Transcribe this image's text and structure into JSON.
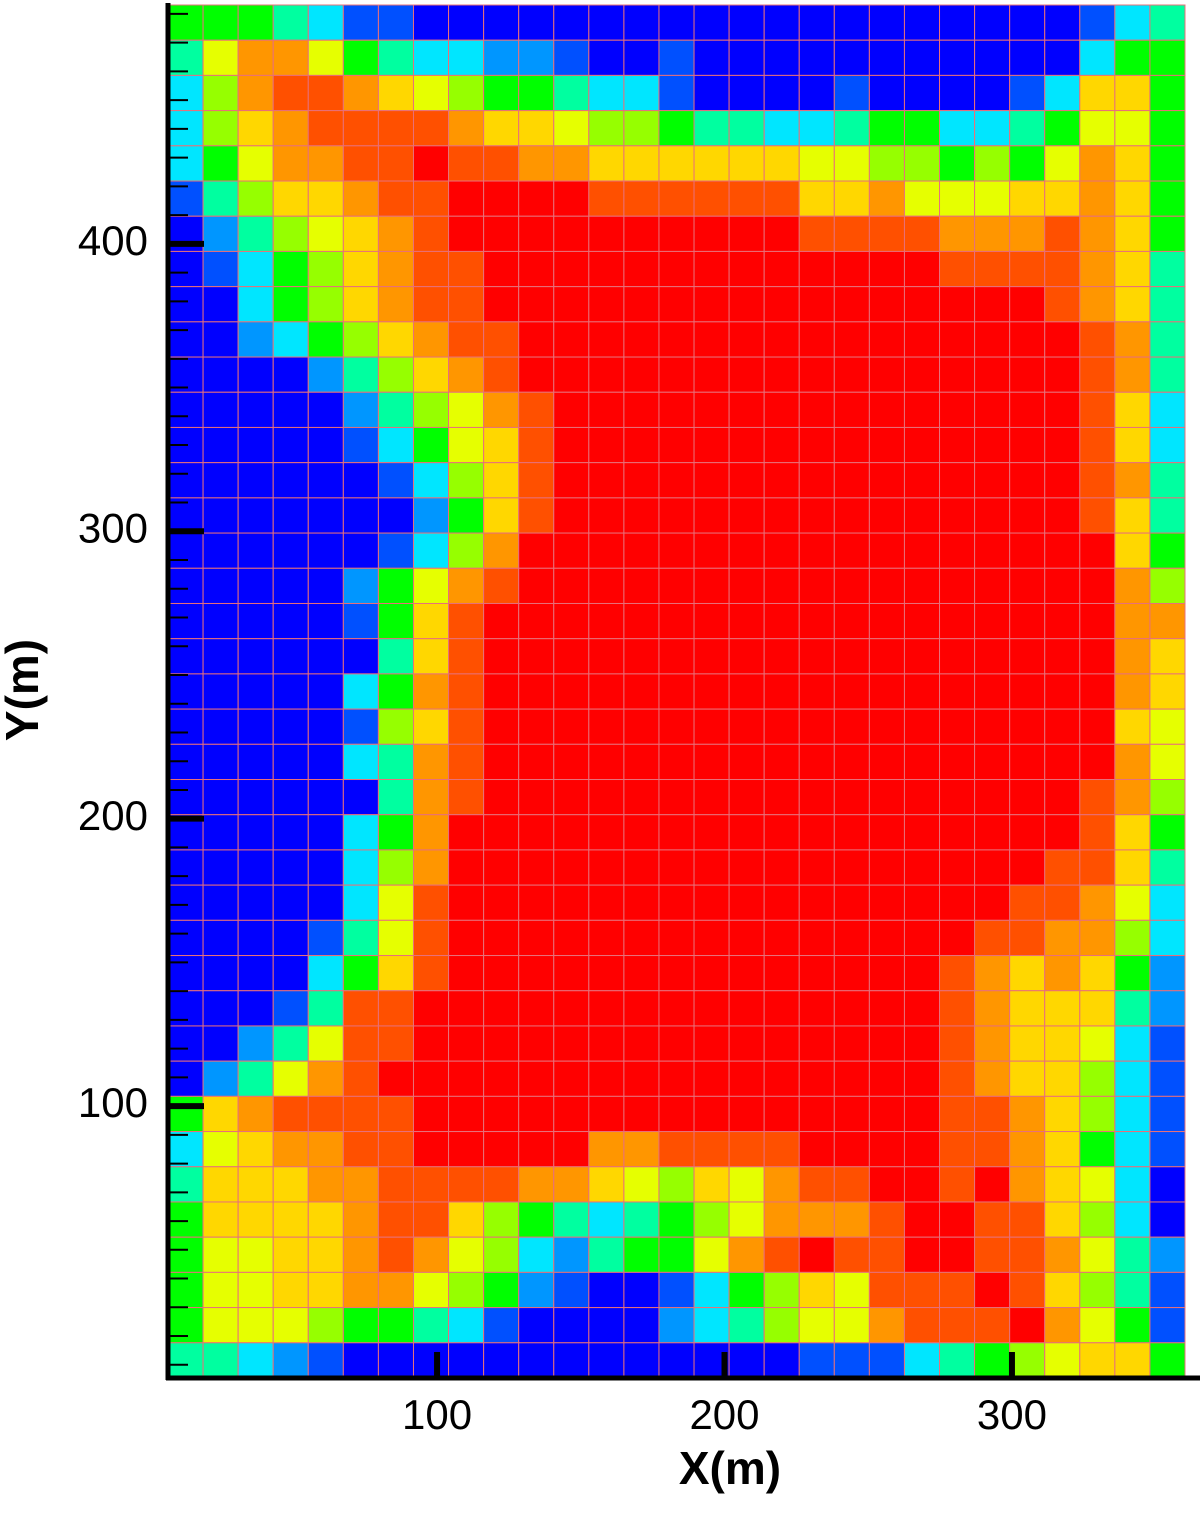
{
  "chart_data": {
    "type": "heatmap",
    "xlabel": "X(m)",
    "ylabel": "Y(m)",
    "xlim": [
      6.4,
      360.2
    ],
    "ylim": [
      5.4,
      483.1
    ],
    "xticks": [
      100,
      200,
      300
    ],
    "yticks": [
      100,
      200,
      300,
      400
    ],
    "yminorticks": [
      10,
      20,
      30,
      40,
      50,
      60,
      70,
      80,
      90,
      110,
      120,
      130,
      140,
      150,
      160,
      170,
      180,
      190,
      210,
      220,
      230,
      240,
      250,
      260,
      270,
      280,
      290,
      310,
      320,
      330,
      340,
      350,
      360,
      370,
      380,
      390,
      410,
      420,
      430,
      440,
      450,
      460,
      470,
      480
    ],
    "zlim": [
      0,
      11
    ],
    "colormap": [
      "#0000ff",
      "#0050ff",
      "#0096ff",
      "#00e6ff",
      "#00ffa0",
      "#00ff00",
      "#96ff00",
      "#e6ff00",
      "#ffd700",
      "#ff9600",
      "#ff5000",
      "#ff0000"
    ],
    "grid_color": "#e8707a",
    "z": [
      [
        5,
        5,
        5,
        4,
        3,
        1,
        1,
        0,
        0,
        0,
        0,
        0,
        0,
        0,
        0,
        0,
        0,
        0,
        0,
        0,
        0,
        0,
        0,
        0,
        0,
        0,
        1,
        3,
        4
      ],
      [
        4,
        7,
        9,
        9,
        7,
        5,
        4,
        3,
        3,
        2,
        2,
        1,
        0,
        0,
        1,
        0,
        0,
        0,
        0,
        0,
        0,
        0,
        0,
        0,
        0,
        0,
        3,
        5,
        5
      ],
      [
        3,
        6,
        9,
        10,
        10,
        9,
        8,
        7,
        6,
        5,
        5,
        4,
        3,
        3,
        1,
        0,
        0,
        0,
        0,
        1,
        0,
        0,
        0,
        0,
        1,
        3,
        8,
        8,
        5
      ],
      [
        3,
        6,
        8,
        9,
        10,
        10,
        10,
        10,
        9,
        8,
        8,
        7,
        6,
        6,
        5,
        4,
        4,
        3,
        3,
        4,
        5,
        5,
        3,
        3,
        4,
        5,
        7,
        7,
        5
      ],
      [
        3,
        5,
        7,
        9,
        9,
        10,
        10,
        11,
        10,
        10,
        9,
        9,
        8,
        8,
        8,
        8,
        8,
        8,
        7,
        7,
        6,
        6,
        5,
        6,
        5,
        7,
        9,
        8,
        5
      ],
      [
        1,
        4,
        6,
        8,
        8,
        9,
        10,
        10,
        11,
        11,
        11,
        11,
        10,
        10,
        10,
        10,
        10,
        10,
        8,
        8,
        9,
        7,
        7,
        7,
        8,
        8,
        9,
        8,
        5
      ],
      [
        0,
        2,
        4,
        6,
        7,
        8,
        9,
        10,
        11,
        11,
        11,
        11,
        11,
        11,
        11,
        11,
        11,
        11,
        10,
        10,
        10,
        10,
        9,
        9,
        9,
        10,
        9,
        8,
        5
      ],
      [
        0,
        1,
        3,
        5,
        6,
        8,
        9,
        10,
        10,
        11,
        11,
        11,
        11,
        11,
        11,
        11,
        11,
        11,
        11,
        11,
        11,
        11,
        10,
        10,
        10,
        10,
        9,
        8,
        4
      ],
      [
        0,
        0,
        3,
        5,
        6,
        8,
        9,
        10,
        10,
        11,
        11,
        11,
        11,
        11,
        11,
        11,
        11,
        11,
        11,
        11,
        11,
        11,
        11,
        11,
        11,
        10,
        9,
        8,
        4
      ],
      [
        0,
        0,
        2,
        3,
        5,
        6,
        8,
        9,
        10,
        10,
        11,
        11,
        11,
        11,
        11,
        11,
        11,
        11,
        11,
        11,
        11,
        11,
        11,
        11,
        11,
        11,
        10,
        9,
        4
      ],
      [
        0,
        0,
        0,
        0,
        2,
        4,
        6,
        8,
        9,
        10,
        11,
        11,
        11,
        11,
        11,
        11,
        11,
        11,
        11,
        11,
        11,
        11,
        11,
        11,
        11,
        11,
        10,
        9,
        4
      ],
      [
        0,
        0,
        0,
        0,
        0,
        2,
        4,
        6,
        7,
        9,
        10,
        11,
        11,
        11,
        11,
        11,
        11,
        11,
        11,
        11,
        11,
        11,
        11,
        11,
        11,
        11,
        10,
        8,
        3
      ],
      [
        0,
        0,
        0,
        0,
        0,
        1,
        3,
        5,
        7,
        8,
        10,
        11,
        11,
        11,
        11,
        11,
        11,
        11,
        11,
        11,
        11,
        11,
        11,
        11,
        11,
        11,
        10,
        8,
        3
      ],
      [
        0,
        0,
        0,
        0,
        0,
        0,
        1,
        3,
        6,
        8,
        10,
        11,
        11,
        11,
        11,
        11,
        11,
        11,
        11,
        11,
        11,
        11,
        11,
        11,
        11,
        11,
        10,
        9,
        4
      ],
      [
        0,
        0,
        0,
        0,
        0,
        0,
        0,
        2,
        5,
        8,
        10,
        11,
        11,
        11,
        11,
        11,
        11,
        11,
        11,
        11,
        11,
        11,
        11,
        11,
        11,
        11,
        10,
        8,
        4
      ],
      [
        0,
        0,
        0,
        0,
        0,
        0,
        1,
        3,
        6,
        9,
        11,
        11,
        11,
        11,
        11,
        11,
        11,
        11,
        11,
        11,
        11,
        11,
        11,
        11,
        11,
        11,
        11,
        8,
        5
      ],
      [
        0,
        0,
        0,
        0,
        0,
        2,
        5,
        7,
        9,
        10,
        11,
        11,
        11,
        11,
        11,
        11,
        11,
        11,
        11,
        11,
        11,
        11,
        11,
        11,
        11,
        11,
        11,
        9,
        6
      ],
      [
        0,
        0,
        0,
        0,
        0,
        1,
        5,
        8,
        10,
        11,
        11,
        11,
        11,
        11,
        11,
        11,
        11,
        11,
        11,
        11,
        11,
        11,
        11,
        11,
        11,
        11,
        11,
        9,
        9
      ],
      [
        0,
        0,
        0,
        0,
        0,
        0,
        4,
        8,
        10,
        11,
        11,
        11,
        11,
        11,
        11,
        11,
        11,
        11,
        11,
        11,
        11,
        11,
        11,
        11,
        11,
        11,
        11,
        9,
        8
      ],
      [
        0,
        0,
        0,
        0,
        0,
        3,
        5,
        9,
        10,
        11,
        11,
        11,
        11,
        11,
        11,
        11,
        11,
        11,
        11,
        11,
        11,
        11,
        11,
        11,
        11,
        11,
        11,
        9,
        8
      ],
      [
        0,
        0,
        0,
        0,
        0,
        1,
        6,
        8,
        10,
        11,
        11,
        11,
        11,
        11,
        11,
        11,
        11,
        11,
        11,
        11,
        11,
        11,
        11,
        11,
        11,
        11,
        11,
        8,
        7
      ],
      [
        0,
        0,
        0,
        0,
        0,
        3,
        4,
        9,
        10,
        11,
        11,
        11,
        11,
        11,
        11,
        11,
        11,
        11,
        11,
        11,
        11,
        11,
        11,
        11,
        11,
        11,
        11,
        9,
        7
      ],
      [
        0,
        0,
        0,
        0,
        0,
        0,
        4,
        9,
        10,
        11,
        11,
        11,
        11,
        11,
        11,
        11,
        11,
        11,
        11,
        11,
        11,
        11,
        11,
        11,
        11,
        11,
        10,
        9,
        6
      ],
      [
        0,
        0,
        0,
        0,
        0,
        3,
        5,
        9,
        11,
        11,
        11,
        11,
        11,
        11,
        11,
        11,
        11,
        11,
        11,
        11,
        11,
        11,
        11,
        11,
        11,
        11,
        10,
        8,
        5
      ],
      [
        0,
        0,
        0,
        0,
        0,
        3,
        6,
        9,
        11,
        11,
        11,
        11,
        11,
        11,
        11,
        11,
        11,
        11,
        11,
        11,
        11,
        11,
        11,
        11,
        11,
        10,
        10,
        8,
        4
      ],
      [
        0,
        0,
        0,
        0,
        0,
        3,
        7,
        10,
        11,
        11,
        11,
        11,
        11,
        11,
        11,
        11,
        11,
        11,
        11,
        11,
        11,
        11,
        11,
        11,
        10,
        10,
        9,
        7,
        3
      ],
      [
        0,
        0,
        0,
        0,
        1,
        4,
        7,
        10,
        11,
        11,
        11,
        11,
        11,
        11,
        11,
        11,
        11,
        11,
        11,
        11,
        11,
        11,
        11,
        10,
        10,
        9,
        9,
        6,
        3
      ],
      [
        0,
        0,
        0,
        0,
        3,
        5,
        8,
        10,
        11,
        11,
        11,
        11,
        11,
        11,
        11,
        11,
        11,
        11,
        11,
        11,
        11,
        11,
        10,
        9,
        8,
        9,
        8,
        5,
        2
      ],
      [
        0,
        0,
        0,
        1,
        4,
        10,
        10,
        11,
        11,
        11,
        11,
        11,
        11,
        11,
        11,
        11,
        11,
        11,
        11,
        11,
        11,
        11,
        10,
        9,
        8,
        8,
        8,
        4,
        2
      ],
      [
        0,
        0,
        2,
        4,
        7,
        10,
        10,
        11,
        11,
        11,
        11,
        11,
        11,
        11,
        11,
        11,
        11,
        11,
        11,
        11,
        11,
        11,
        10,
        9,
        8,
        8,
        7,
        3,
        1
      ],
      [
        0,
        2,
        4,
        7,
        9,
        10,
        11,
        11,
        11,
        11,
        11,
        11,
        11,
        11,
        11,
        11,
        11,
        11,
        11,
        11,
        11,
        11,
        10,
        9,
        8,
        8,
        6,
        3,
        1
      ],
      [
        5,
        8,
        9,
        10,
        10,
        10,
        10,
        11,
        11,
        11,
        11,
        11,
        11,
        11,
        11,
        11,
        11,
        11,
        11,
        11,
        11,
        11,
        10,
        10,
        9,
        8,
        6,
        3,
        1
      ],
      [
        3,
        7,
        8,
        9,
        9,
        10,
        10,
        11,
        11,
        11,
        11,
        11,
        9,
        9,
        10,
        10,
        10,
        10,
        11,
        11,
        11,
        11,
        10,
        10,
        9,
        8,
        5,
        3,
        1
      ],
      [
        4,
        8,
        8,
        8,
        9,
        9,
        10,
        10,
        10,
        10,
        9,
        9,
        8,
        7,
        6,
        8,
        7,
        9,
        10,
        10,
        11,
        11,
        10,
        11,
        9,
        8,
        7,
        3,
        0
      ],
      [
        5,
        8,
        8,
        8,
        8,
        9,
        10,
        10,
        8,
        6,
        5,
        4,
        3,
        4,
        5,
        6,
        7,
        9,
        9,
        9,
        10,
        11,
        11,
        10,
        10,
        8,
        6,
        3,
        0
      ],
      [
        5,
        7,
        7,
        8,
        8,
        9,
        10,
        9,
        7,
        6,
        3,
        2,
        4,
        5,
        5,
        7,
        9,
        10,
        11,
        10,
        10,
        11,
        11,
        10,
        10,
        9,
        7,
        4,
        2
      ],
      [
        5,
        7,
        7,
        8,
        8,
        9,
        9,
        7,
        6,
        5,
        2,
        1,
        0,
        0,
        1,
        3,
        5,
        6,
        8,
        7,
        10,
        10,
        10,
        11,
        10,
        8,
        6,
        4,
        1
      ],
      [
        5,
        7,
        7,
        7,
        6,
        5,
        5,
        4,
        3,
        1,
        0,
        0,
        0,
        0,
        2,
        3,
        4,
        6,
        7,
        7,
        9,
        10,
        10,
        10,
        11,
        9,
        7,
        5,
        1
      ],
      [
        4,
        4,
        3,
        2,
        1,
        0,
        0,
        0,
        0,
        0,
        0,
        0,
        0,
        0,
        0,
        0,
        0,
        0,
        1,
        1,
        1,
        3,
        4,
        5,
        6,
        7,
        8,
        8,
        5
      ]
    ]
  }
}
